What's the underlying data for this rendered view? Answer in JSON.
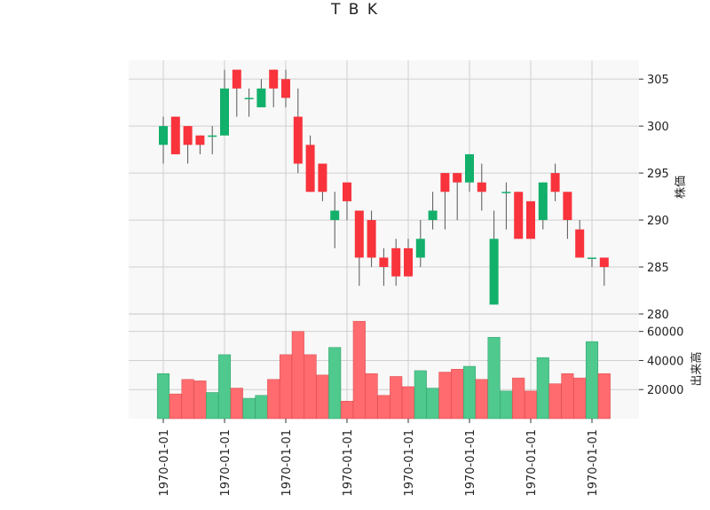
{
  "chart_data": {
    "type": "candlestick",
    "title": "T B K",
    "ylabel_price": "株価",
    "ylabel_volume": "出来高",
    "price_ylim": [
      280,
      307
    ],
    "price_yticks": [
      280,
      285,
      290,
      295,
      300,
      305
    ],
    "volume_ylim": [
      0,
      72000
    ],
    "volume_yticks": [
      20000,
      40000,
      60000
    ],
    "volume_ytick_labels": [
      "20000",
      "40000",
      "60000"
    ],
    "x_tick_label": "1970-01-01",
    "x_tick_indices": [
      0,
      5,
      10,
      15,
      20,
      25,
      30,
      35
    ],
    "grid": true,
    "colors": {
      "up": "#12b06a",
      "down": "#f8333c",
      "volume_up": "#4fc98d",
      "volume_down": "#ff6b6e",
      "wick": "#555555",
      "panel_bg": "#f8f8f8",
      "grid": "#d0d0d0"
    },
    "candles": [
      {
        "open": 298,
        "high": 301,
        "low": 296,
        "close": 300,
        "volume": 31000
      },
      {
        "open": 301,
        "high": 301,
        "low": 297,
        "close": 297,
        "volume": 17000
      },
      {
        "open": 300,
        "high": 300,
        "low": 296,
        "close": 298,
        "volume": 27000
      },
      {
        "open": 299,
        "high": 299,
        "low": 297,
        "close": 298,
        "volume": 26000
      },
      {
        "open": 299,
        "high": 300,
        "low": 297,
        "close": 299,
        "volume": 18000
      },
      {
        "open": 299,
        "high": 306,
        "low": 299,
        "close": 304,
        "volume": 44000
      },
      {
        "open": 306,
        "high": 306,
        "low": 301,
        "close": 304,
        "volume": 21000
      },
      {
        "open": 303,
        "high": 304,
        "low": 301,
        "close": 303,
        "volume": 14000
      },
      {
        "open": 302,
        "high": 305,
        "low": 302,
        "close": 304,
        "volume": 16000
      },
      {
        "open": 306,
        "high": 306,
        "low": 302,
        "close": 304,
        "volume": 27000
      },
      {
        "open": 305,
        "high": 306,
        "low": 302,
        "close": 303,
        "volume": 44000
      },
      {
        "open": 301,
        "high": 304,
        "low": 295,
        "close": 296,
        "volume": 60000
      },
      {
        "open": 298,
        "high": 299,
        "low": 293,
        "close": 293,
        "volume": 44000
      },
      {
        "open": 296,
        "high": 296,
        "low": 292,
        "close": 293,
        "volume": 30000
      },
      {
        "open": 290,
        "high": 293,
        "low": 287,
        "close": 291,
        "volume": 49000
      },
      {
        "open": 294,
        "high": 294,
        "low": 290,
        "close": 292,
        "volume": 12000
      },
      {
        "open": 291,
        "high": 291,
        "low": 283,
        "close": 286,
        "volume": 67000
      },
      {
        "open": 290,
        "high": 291,
        "low": 285,
        "close": 286,
        "volume": 31000
      },
      {
        "open": 286,
        "high": 287,
        "low": 283,
        "close": 285,
        "volume": 16000
      },
      {
        "open": 287,
        "high": 288,
        "low": 283,
        "close": 284,
        "volume": 29000
      },
      {
        "open": 287,
        "high": 288,
        "low": 284,
        "close": 284,
        "volume": 22000
      },
      {
        "open": 286,
        "high": 290,
        "low": 285,
        "close": 288,
        "volume": 33000
      },
      {
        "open": 290,
        "high": 293,
        "low": 289,
        "close": 291,
        "volume": 21000
      },
      {
        "open": 295,
        "high": 295,
        "low": 289,
        "close": 293,
        "volume": 32000
      },
      {
        "open": 295,
        "high": 295,
        "low": 290,
        "close": 294,
        "volume": 34000
      },
      {
        "open": 294,
        "high": 297,
        "low": 293,
        "close": 297,
        "volume": 36000
      },
      {
        "open": 294,
        "high": 296,
        "low": 291,
        "close": 293,
        "volume": 27000
      },
      {
        "open": 281,
        "high": 291,
        "low": 281,
        "close": 288,
        "volume": 56000
      },
      {
        "open": 293,
        "high": 294,
        "low": 289,
        "close": 293,
        "volume": 19000
      },
      {
        "open": 293,
        "high": 293,
        "low": 288,
        "close": 288,
        "volume": 28000
      },
      {
        "open": 292,
        "high": 292,
        "low": 288,
        "close": 288,
        "volume": 19000
      },
      {
        "open": 290,
        "high": 294,
        "low": 289,
        "close": 294,
        "volume": 42000
      },
      {
        "open": 295,
        "high": 296,
        "low": 292,
        "close": 293,
        "volume": 24000
      },
      {
        "open": 293,
        "high": 293,
        "low": 288,
        "close": 290,
        "volume": 31000
      },
      {
        "open": 289,
        "high": 290,
        "low": 286,
        "close": 286,
        "volume": 28000
      },
      {
        "open": 286,
        "high": 286,
        "low": 285,
        "close": 286,
        "volume": 53000
      },
      {
        "open": 286,
        "high": 286,
        "low": 283,
        "close": 285,
        "volume": 31000
      }
    ]
  }
}
